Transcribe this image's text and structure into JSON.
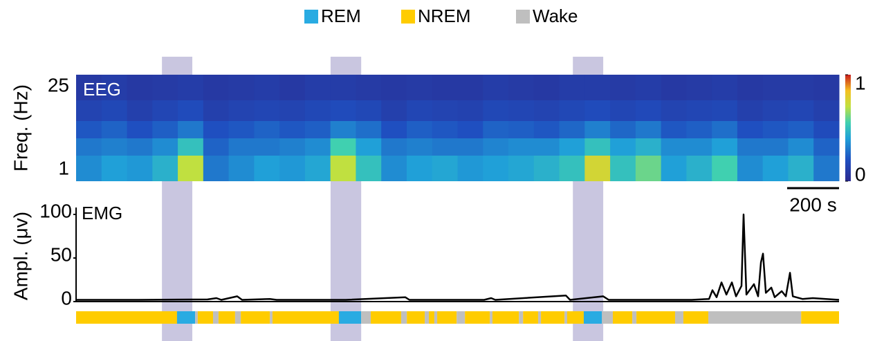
{
  "chart_data": [
    {
      "type": "heatmap",
      "title": "EEG",
      "ylabel": "Freq. (Hz)",
      "xlim": [
        0,
        2941
      ],
      "ylim": [
        -2.4,
        28.4
      ],
      "yticks": [
        1,
        25
      ],
      "row_edges": [
        -2.4,
        5,
        10,
        15,
        21,
        28.4
      ],
      "values": [
        [
          0.35,
          0.4,
          0.38,
          0.45,
          0.7,
          0.3,
          0.35,
          0.4,
          0.38,
          0.42,
          0.7,
          0.5,
          0.35,
          0.4,
          0.42,
          0.38,
          0.4,
          0.42,
          0.45,
          0.5,
          0.75,
          0.5,
          0.6,
          0.4,
          0.45,
          0.55,
          0.35,
          0.4,
          0.45,
          0.3
        ],
        [
          0.3,
          0.32,
          0.3,
          0.35,
          0.5,
          0.25,
          0.3,
          0.3,
          0.32,
          0.35,
          0.55,
          0.4,
          0.3,
          0.32,
          0.3,
          0.3,
          0.33,
          0.35,
          0.35,
          0.4,
          0.5,
          0.4,
          0.45,
          0.35,
          0.35,
          0.4,
          0.3,
          0.3,
          0.35,
          0.25
        ],
        [
          0.22,
          0.25,
          0.2,
          0.24,
          0.3,
          0.2,
          0.22,
          0.25,
          0.22,
          0.24,
          0.32,
          0.28,
          0.2,
          0.24,
          0.22,
          0.2,
          0.25,
          0.24,
          0.22,
          0.26,
          0.32,
          0.26,
          0.3,
          0.22,
          0.24,
          0.28,
          0.2,
          0.22,
          0.24,
          0.18
        ],
        [
          0.14,
          0.16,
          0.12,
          0.15,
          0.18,
          0.12,
          0.14,
          0.15,
          0.14,
          0.16,
          0.18,
          0.16,
          0.12,
          0.15,
          0.14,
          0.13,
          0.16,
          0.15,
          0.14,
          0.16,
          0.18,
          0.15,
          0.17,
          0.14,
          0.15,
          0.16,
          0.12,
          0.14,
          0.15,
          0.12
        ],
        [
          0.08,
          0.1,
          0.08,
          0.09,
          0.1,
          0.08,
          0.09,
          0.1,
          0.08,
          0.1,
          0.1,
          0.09,
          0.08,
          0.09,
          0.08,
          0.08,
          0.1,
          0.09,
          0.08,
          0.1,
          0.1,
          0.09,
          0.1,
          0.08,
          0.09,
          0.1,
          0.08,
          0.09,
          0.09,
          0.08
        ]
      ],
      "clim": [
        0,
        1
      ],
      "colorbar_ticks": [
        0,
        1
      ],
      "scale_bar": {
        "value": 200,
        "label": "200 s"
      }
    },
    {
      "type": "line",
      "title": "EMG",
      "ylabel": "Ampl. (μv)",
      "color": "#000000",
      "xlim": [
        0,
        2941
      ],
      "ylim": [
        0,
        100
      ],
      "yticks": [
        0,
        50,
        100
      ],
      "x": [
        0,
        240,
        507,
        541,
        560,
        621,
        640,
        747,
        773,
        1040,
        1269,
        1285,
        1573,
        1600,
        1616,
        1888,
        1904,
        2032,
        2053,
        2373,
        2440,
        2453,
        2469,
        2488,
        2507,
        2528,
        2544,
        2565,
        2573,
        2584,
        2613,
        2629,
        2640,
        2648,
        2659,
        2680,
        2693,
        2720,
        2736,
        2752,
        2763,
        2800,
        2840,
        2941
      ],
      "values": [
        2,
        2,
        2.5,
        4,
        2,
        6,
        2,
        3,
        2,
        2,
        5,
        2,
        2,
        4,
        2,
        7,
        2,
        6,
        2,
        2,
        3,
        13,
        5,
        22,
        8,
        22,
        6,
        18,
        100,
        8,
        20,
        6,
        45,
        55,
        10,
        16,
        5,
        12,
        6,
        33,
        6,
        3,
        4,
        2
      ]
    },
    {
      "type": "timeline",
      "xlim": [
        0,
        2941
      ],
      "series": [
        {
          "name": "REM",
          "color": "#29abe2"
        },
        {
          "name": "NREM",
          "color": "#ffcc00"
        },
        {
          "name": "Wake",
          "color": "#bfbfbf"
        }
      ],
      "starts": [
        0,
        389,
        459,
        469,
        528,
        549,
        613,
        635,
        747,
        757,
        1013,
        1099,
        1136,
        1253,
        1275,
        1344,
        1360,
        1381,
        1392,
        1467,
        1499,
        1595,
        1605,
        1707,
        1723,
        1781,
        1792,
        1883,
        1893,
        1957,
        2027,
        2069,
        2144,
        2160,
        2309,
        2341,
        2437,
        2795
      ],
      "states": [
        1,
        0,
        2,
        1,
        2,
        1,
        2,
        1,
        2,
        1,
        0,
        2,
        1,
        2,
        1,
        2,
        1,
        2,
        1,
        2,
        1,
        2,
        1,
        2,
        1,
        2,
        1,
        2,
        1,
        0,
        2,
        1,
        2,
        1,
        2,
        1,
        2,
        1
      ],
      "highlight_color": "#c9c6e0",
      "highlights": [
        [
          331,
          448
        ],
        [
          981,
          1099
        ],
        [
          1915,
          2032
        ]
      ]
    }
  ]
}
